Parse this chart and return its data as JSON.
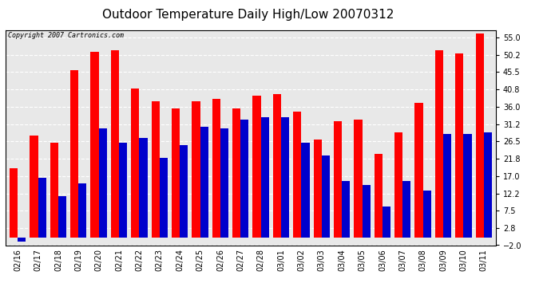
{
  "title": "Outdoor Temperature Daily High/Low 20070312",
  "copyright": "Copyright 2007 Cartronics.com",
  "dates": [
    "02/16",
    "02/17",
    "02/18",
    "02/19",
    "02/20",
    "02/21",
    "02/22",
    "02/23",
    "02/24",
    "02/25",
    "02/26",
    "02/27",
    "02/28",
    "03/01",
    "03/02",
    "03/03",
    "03/04",
    "03/05",
    "03/06",
    "03/07",
    "03/08",
    "03/09",
    "03/10",
    "03/11"
  ],
  "highs": [
    19.0,
    28.0,
    26.0,
    46.0,
    51.0,
    51.5,
    41.0,
    37.5,
    35.5,
    37.5,
    38.0,
    35.5,
    39.0,
    39.5,
    34.5,
    27.0,
    32.0,
    32.5,
    23.0,
    29.0,
    37.0,
    51.5,
    50.5,
    56.0
  ],
  "lows": [
    -1.0,
    16.5,
    11.5,
    15.0,
    30.0,
    26.0,
    27.5,
    22.0,
    25.5,
    30.5,
    30.0,
    32.5,
    33.0,
    33.0,
    26.0,
    22.5,
    15.5,
    14.5,
    8.5,
    15.5,
    13.0,
    28.5,
    28.5,
    29.0
  ],
  "high_color": "#ff0000",
  "low_color": "#0000cc",
  "bg_color": "#ffffff",
  "plot_bg": "#e8e8e8",
  "yticks": [
    -2.0,
    2.8,
    7.5,
    12.2,
    17.0,
    21.8,
    26.5,
    31.2,
    36.0,
    40.8,
    45.5,
    50.2,
    55.0
  ],
  "ylim": [
    -2.0,
    57.0
  ],
  "grid_color": "#ffffff",
  "title_fontsize": 11,
  "bar_width": 0.4
}
